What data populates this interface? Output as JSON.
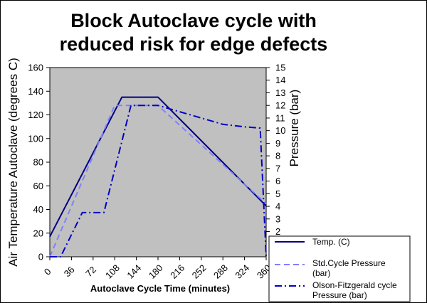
{
  "chart_data": {
    "type": "line",
    "title_lines": [
      "Block Autoclave cycle with",
      "reduced risk for edge defects"
    ],
    "xlabel": "Autoclave Cycle Time (minutes)",
    "ylabel": "Air Temperature Autoclave (degrees C)",
    "y2label": "Pressure (bar)",
    "xlim": [
      0,
      360
    ],
    "ylim": [
      0,
      160
    ],
    "y2lim": [
      0,
      15
    ],
    "x_ticks": [
      0,
      36,
      72,
      108,
      144,
      180,
      216,
      252,
      288,
      324,
      360
    ],
    "y_ticks": [
      0,
      20,
      40,
      60,
      80,
      100,
      120,
      140,
      160
    ],
    "y2_ticks": [
      2,
      3,
      4,
      5,
      6,
      7,
      8,
      9,
      10,
      11,
      12,
      13,
      14,
      15
    ],
    "plot_background": "#c0c0c0",
    "grid": false,
    "legend_position": "bottom-right",
    "series": [
      {
        "name": "Temp. (C)",
        "axis": "left",
        "color": "#000080",
        "dash": "solid",
        "x": [
          0,
          120,
          180,
          360
        ],
        "y": [
          17,
          135,
          135,
          43
        ]
      },
      {
        "name": "Std.Cycle Pressure (bar)",
        "axis": "right",
        "color": "#8080ff",
        "dash": "dash",
        "x": [
          0,
          108,
          180,
          360
        ],
        "y": [
          0,
          12,
          12,
          4.2
        ]
      },
      {
        "name": "Olson-Fitzgerald cycle Pressure (bar)",
        "axis": "right",
        "color": "#0000c8",
        "dash": "dashdot",
        "x": [
          0,
          18,
          54,
          66,
          90,
          135,
          180,
          216,
          252,
          288,
          324,
          350,
          360
        ],
        "y": [
          0,
          0,
          3.5,
          3.5,
          3.5,
          12,
          12,
          11.5,
          11,
          10.5,
          10.3,
          10.2,
          0
        ]
      }
    ]
  }
}
